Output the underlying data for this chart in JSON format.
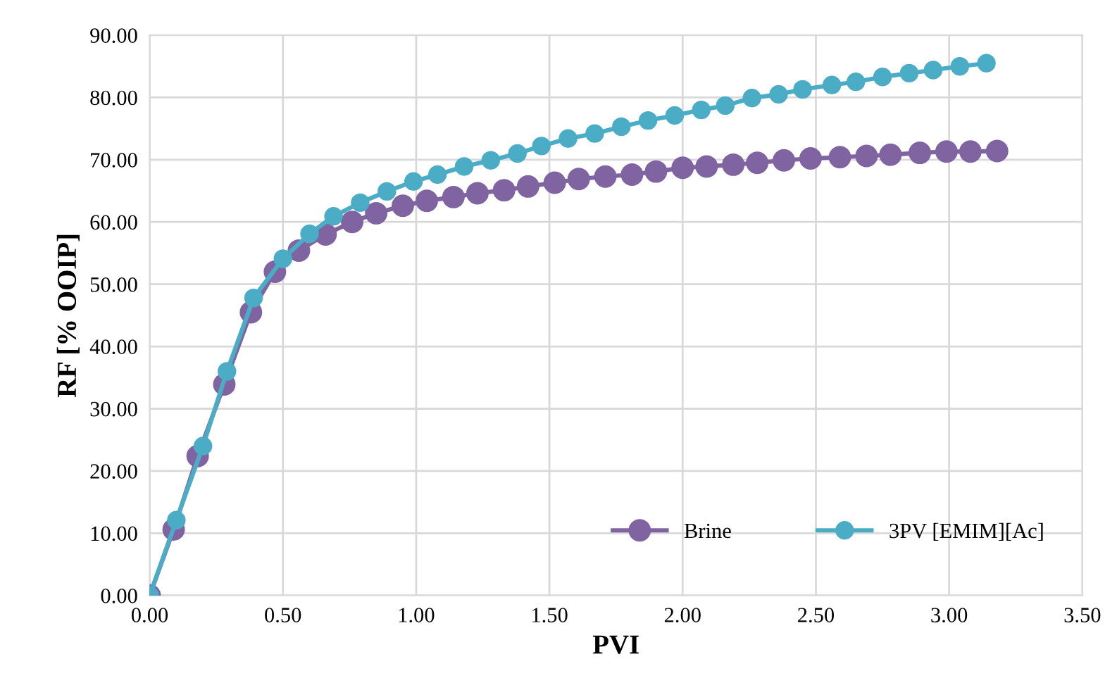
{
  "chart_data": {
    "type": "line",
    "xlabel": "PVI",
    "ylabel": "RF [% OOIP]",
    "xlim": [
      0,
      3.5
    ],
    "ylim": [
      0,
      90
    ],
    "xticks": [
      {
        "value": 0,
        "label": "0.00"
      },
      {
        "value": 0.5,
        "label": "0.50"
      },
      {
        "value": 1,
        "label": "1.00"
      },
      {
        "value": 1.5,
        "label": "1.50"
      },
      {
        "value": 2,
        "label": "2.00"
      },
      {
        "value": 2.5,
        "label": "2.50"
      },
      {
        "value": 3,
        "label": "3.00"
      },
      {
        "value": 3.5,
        "label": "3.50"
      }
    ],
    "yticks": [
      {
        "value": 0,
        "label": "0.00"
      },
      {
        "value": 10,
        "label": "10.00"
      },
      {
        "value": 20,
        "label": "20.00"
      },
      {
        "value": 30,
        "label": "30.00"
      },
      {
        "value": 40,
        "label": "40.00"
      },
      {
        "value": 50,
        "label": "50.00"
      },
      {
        "value": 60,
        "label": "60.00"
      },
      {
        "value": 70,
        "label": "70.00"
      },
      {
        "value": 80,
        "label": "80.00"
      },
      {
        "value": 90,
        "label": "90.00"
      }
    ],
    "grid": true,
    "legend": "bottom right",
    "marker": "circle",
    "line_style": "solid",
    "series": [
      {
        "name": "Brine",
        "color": "#8064a2",
        "x": [
          0,
          0.09,
          0.18,
          0.28,
          0.38,
          0.47,
          0.56,
          0.66,
          0.76,
          0.85,
          0.95,
          1.04,
          1.14,
          1.23,
          1.33,
          1.42,
          1.52,
          1.61,
          1.71,
          1.81,
          1.9,
          2.0,
          2.09,
          2.19,
          2.28,
          2.38,
          2.48,
          2.59,
          2.69,
          2.78,
          2.89,
          2.99,
          3.08,
          3.18
        ],
        "values": [
          0,
          10.6,
          22.4,
          33.9,
          45.5,
          52.0,
          55.4,
          58.0,
          60.0,
          61.4,
          62.6,
          63.4,
          64.0,
          64.6,
          65.1,
          65.7,
          66.3,
          66.9,
          67.3,
          67.6,
          68.1,
          68.7,
          68.9,
          69.2,
          69.5,
          69.9,
          70.2,
          70.4,
          70.6,
          70.8,
          71.1,
          71.3,
          71.3,
          71.4
        ]
      },
      {
        "name": "3PV [EMIM][Ac]",
        "color": "#4bacc6",
        "x": [
          0,
          0.1,
          0.2,
          0.29,
          0.39,
          0.5,
          0.6,
          0.69,
          0.79,
          0.89,
          0.99,
          1.08,
          1.18,
          1.28,
          1.38,
          1.47,
          1.57,
          1.67,
          1.77,
          1.87,
          1.97,
          2.07,
          2.16,
          2.26,
          2.36,
          2.45,
          2.56,
          2.65,
          2.75,
          2.85,
          2.94,
          3.04,
          3.14
        ],
        "values": [
          0,
          12.1,
          24.0,
          36.0,
          47.8,
          54.1,
          58.1,
          60.9,
          63.1,
          64.9,
          66.5,
          67.6,
          68.9,
          69.9,
          71.0,
          72.2,
          73.4,
          74.2,
          75.3,
          76.3,
          77.1,
          78.0,
          78.7,
          79.9,
          80.5,
          81.3,
          82.0,
          82.5,
          83.3,
          83.9,
          84.4,
          85.0,
          85.5
        ]
      }
    ]
  }
}
